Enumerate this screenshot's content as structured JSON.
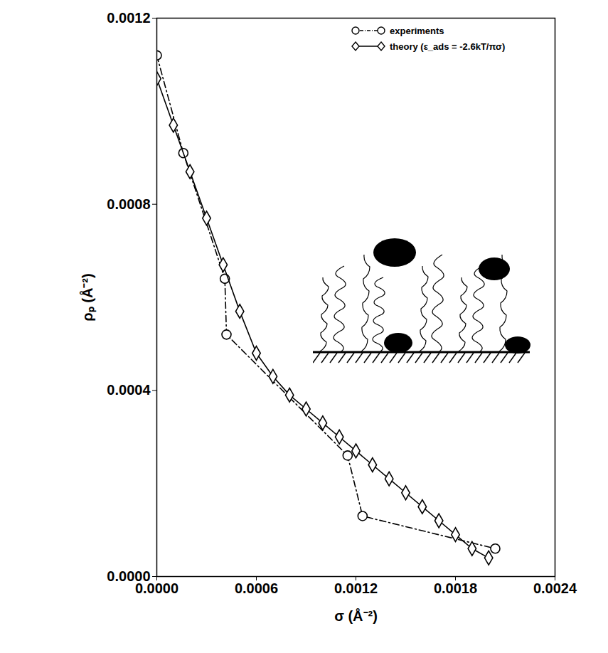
{
  "chart_data": {
    "type": "line",
    "x_label": "σ (Å⁻²)",
    "y_label": "ρₚ (Å⁻²)",
    "xlim": [
      0,
      0.0024
    ],
    "xticks": [
      {
        "value": 0,
        "label": "0.0000"
      },
      0.0006,
      0.0012,
      0.0018,
      0.0024
    ],
    "ylim": [
      0,
      0.0012
    ],
    "yticks": [
      {
        "value": 0,
        "label": "0.0000"
      },
      0.0004,
      0.0008,
      0.0012
    ],
    "grid": false,
    "legend": "top-right",
    "series": [
      {
        "name": "experiments",
        "color": "#000000",
        "marker": "circle",
        "line_style": "dashdot",
        "x": [
          0,
          0.00016,
          0.00041,
          0.00042,
          0.00115,
          0.00124,
          0.00204
        ],
        "values": [
          0.00112,
          0.00091,
          0.00064,
          0.00052,
          0.00026,
          0.00013,
          6e-05
        ]
      },
      {
        "name": "theory (ε_ads = -2.6kT/πσ)",
        "color": "#000000",
        "marker": "diamond",
        "line_style": "solid",
        "x": [
          0,
          0.0001,
          0.0002,
          0.0003,
          0.0004,
          0.0005,
          0.0006,
          0.0007,
          0.0008,
          0.0009,
          0.001,
          0.0011,
          0.0012,
          0.0013,
          0.0014,
          0.0015,
          0.0016,
          0.0017,
          0.0018,
          0.0019,
          0.002
        ],
        "values": [
          0.00107,
          0.00097,
          0.00087,
          0.00077,
          0.00067,
          0.00057,
          0.00048,
          0.00043,
          0.00039,
          0.00036,
          0.00033,
          0.0003,
          0.00027,
          0.00024,
          0.00021,
          0.00018,
          0.00015,
          0.00012,
          9e-05,
          6e-05,
          4e-05
        ]
      }
    ]
  }
}
